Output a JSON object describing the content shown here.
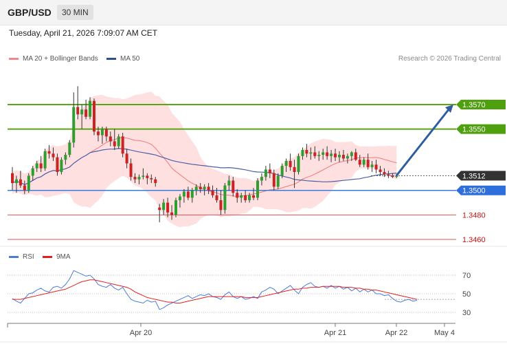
{
  "header": {
    "pair": "GBP/USD",
    "timeframe": "30 MIN",
    "datetime": "Tuesday, April 21, 2026 7:09:07 AM CET"
  },
  "legend": {
    "ma20": "MA 20 + Bollinger Bands",
    "ma50": "MA 50",
    "copyright": "Research © 2026 Trading Central",
    "rsi": "RSI",
    "ma9": "9MA"
  },
  "colors": {
    "bull": "#2e9e2e",
    "bear": "#cc2222",
    "band": "#ffd6d6",
    "ma20": "#f07878",
    "ma50": "#4a5fa8",
    "resistance": "#5aa514",
    "support": "#3a7ae0",
    "target": "#e05050",
    "arrow": "#2e5e9e",
    "rsi": "#4a7bd8",
    "rsi_ma": "#e02020"
  },
  "chart_data": [
    {
      "type": "candlestick",
      "symbol": "GBP/USD",
      "timeframe": "30 MIN",
      "x_labels": [
        "Apr 20",
        "Apr 21",
        "Apr 22",
        "May 4"
      ],
      "price_range": [
        1.345,
        1.3585
      ],
      "levels": [
        {
          "value": 1.357,
          "label": "1.3570",
          "kind": "resistance"
        },
        {
          "value": 1.355,
          "label": "1.3550",
          "kind": "resistance"
        },
        {
          "value": 1.3512,
          "label": "1.3512",
          "kind": "current"
        },
        {
          "value": 1.35,
          "label": "1.3500",
          "kind": "support"
        },
        {
          "value": 1.348,
          "label": "1.3480",
          "kind": "target"
        },
        {
          "value": 1.346,
          "label": "1.3460",
          "kind": "target"
        }
      ],
      "forecast_arrow": {
        "from": 1.3512,
        "to": 1.357
      },
      "candles": [
        [
          1.3514,
          1.3519,
          1.35,
          1.3506
        ],
        [
          1.3506,
          1.3512,
          1.3498,
          1.3509
        ],
        [
          1.3509,
          1.3516,
          1.3502,
          1.3504
        ],
        [
          1.3504,
          1.3508,
          1.3497,
          1.35
        ],
        [
          1.35,
          1.3514,
          1.3498,
          1.3512
        ],
        [
          1.3512,
          1.352,
          1.3508,
          1.3518
        ],
        [
          1.3518,
          1.3524,
          1.3515,
          1.3522
        ],
        [
          1.3522,
          1.3528,
          1.3515,
          1.3518
        ],
        [
          1.3518,
          1.3534,
          1.3516,
          1.3532
        ],
        [
          1.3532,
          1.3537,
          1.3526,
          1.353
        ],
        [
          1.353,
          1.3535,
          1.3524,
          1.3527
        ],
        [
          1.3527,
          1.353,
          1.3512,
          1.3515
        ],
        [
          1.3515,
          1.3527,
          1.3513,
          1.3525
        ],
        [
          1.3525,
          1.3531,
          1.3521,
          1.3529
        ],
        [
          1.3529,
          1.3541,
          1.3527,
          1.3539
        ],
        [
          1.3539,
          1.358,
          1.3535,
          1.3568
        ],
        [
          1.3568,
          1.3585,
          1.3558,
          1.3562
        ],
        [
          1.3562,
          1.357,
          1.355,
          1.3566
        ],
        [
          1.3566,
          1.3574,
          1.3558,
          1.356
        ],
        [
          1.356,
          1.3576,
          1.3558,
          1.3573
        ],
        [
          1.3573,
          1.3575,
          1.3545,
          1.3548
        ],
        [
          1.3548,
          1.3552,
          1.354,
          1.3545
        ],
        [
          1.3545,
          1.3552,
          1.3538,
          1.355
        ],
        [
          1.355,
          1.3552,
          1.354,
          1.3544
        ],
        [
          1.3544,
          1.3548,
          1.3536,
          1.354
        ],
        [
          1.354,
          1.355,
          1.3533,
          1.3536
        ],
        [
          1.3536,
          1.3546,
          1.3534,
          1.3544
        ],
        [
          1.3544,
          1.3547,
          1.3527,
          1.353
        ],
        [
          1.353,
          1.3534,
          1.3518,
          1.3522
        ],
        [
          1.3522,
          1.3526,
          1.3508,
          1.3511
        ],
        [
          1.3511,
          1.3514,
          1.3506,
          1.3509
        ],
        [
          1.3509,
          1.3513,
          1.3505,
          1.3511
        ],
        [
          1.3511,
          1.3518,
          1.3509,
          1.3512
        ],
        [
          1.3512,
          1.3514,
          1.3505,
          1.351
        ],
        [
          1.351,
          1.3513,
          1.3506,
          1.3509
        ],
        [
          1.3509,
          1.3511,
          1.3503,
          1.3506
        ],
        [
          1.3486,
          1.3489,
          1.3474,
          1.3484
        ],
        [
          1.3484,
          1.3493,
          1.348,
          1.349
        ],
        [
          1.349,
          1.3494,
          1.3478,
          1.3482
        ],
        [
          1.3482,
          1.3488,
          1.3476,
          1.348
        ],
        [
          1.348,
          1.3494,
          1.3478,
          1.3492
        ],
        [
          1.3492,
          1.3497,
          1.3486,
          1.3495
        ],
        [
          1.3495,
          1.3501,
          1.349,
          1.3499
        ],
        [
          1.3499,
          1.3503,
          1.3492,
          1.3494
        ],
        [
          1.3494,
          1.3502,
          1.349,
          1.35
        ],
        [
          1.35,
          1.3505,
          1.3496,
          1.3503
        ],
        [
          1.3503,
          1.3506,
          1.3498,
          1.3501
        ],
        [
          1.3501,
          1.3505,
          1.3496,
          1.3503
        ],
        [
          1.3503,
          1.3506,
          1.3497,
          1.35
        ],
        [
          1.35,
          1.3504,
          1.3494,
          1.3496
        ],
        [
          1.3496,
          1.3502,
          1.349,
          1.3492
        ],
        [
          1.3492,
          1.35,
          1.348,
          1.3484
        ],
        [
          1.3484,
          1.3506,
          1.3481,
          1.3504
        ],
        [
          1.3504,
          1.3512,
          1.35,
          1.3508
        ],
        [
          1.3508,
          1.3511,
          1.3495,
          1.3498
        ],
        [
          1.3498,
          1.3501,
          1.349,
          1.3494
        ],
        [
          1.3494,
          1.3498,
          1.349,
          1.3496
        ],
        [
          1.3496,
          1.35,
          1.349,
          1.3492
        ],
        [
          1.3492,
          1.3498,
          1.349,
          1.3496
        ],
        [
          1.3496,
          1.3502,
          1.3492,
          1.3494
        ],
        [
          1.3494,
          1.351,
          1.3492,
          1.3508
        ],
        [
          1.3508,
          1.3514,
          1.3504,
          1.3511
        ],
        [
          1.3511,
          1.352,
          1.3508,
          1.3517
        ],
        [
          1.3517,
          1.3522,
          1.351,
          1.3514
        ],
        [
          1.3514,
          1.3517,
          1.35,
          1.3503
        ],
        [
          1.3503,
          1.3514,
          1.3501,
          1.3512
        ],
        [
          1.3512,
          1.3522,
          1.351,
          1.352
        ],
        [
          1.352,
          1.3526,
          1.3515,
          1.3524
        ],
        [
          1.3524,
          1.353,
          1.3516,
          1.3519
        ],
        [
          1.3519,
          1.3525,
          1.3502,
          1.3515
        ],
        [
          1.3515,
          1.353,
          1.3513,
          1.3528
        ],
        [
          1.3528,
          1.3535,
          1.3525,
          1.3533
        ],
        [
          1.3533,
          1.3538,
          1.3527,
          1.353
        ],
        [
          1.353,
          1.3535,
          1.3525,
          1.3531
        ],
        [
          1.3531,
          1.3536,
          1.3526,
          1.3528
        ],
        [
          1.3528,
          1.3532,
          1.3524,
          1.3529
        ],
        [
          1.3529,
          1.3534,
          1.3525,
          1.3531
        ],
        [
          1.3531,
          1.3536,
          1.3525,
          1.3528
        ],
        [
          1.3528,
          1.3533,
          1.3523,
          1.353
        ],
        [
          1.353,
          1.3534,
          1.3524,
          1.3527
        ],
        [
          1.3527,
          1.3532,
          1.3523,
          1.3529
        ],
        [
          1.3529,
          1.3533,
          1.3524,
          1.3526
        ],
        [
          1.3526,
          1.353,
          1.3522,
          1.3528
        ],
        [
          1.3528,
          1.3532,
          1.3524,
          1.3531
        ],
        [
          1.3531,
          1.3534,
          1.3524,
          1.3525
        ],
        [
          1.3525,
          1.3529,
          1.3519,
          1.3521
        ],
        [
          1.3521,
          1.3527,
          1.3519,
          1.3525
        ],
        [
          1.3525,
          1.353,
          1.3517,
          1.3519
        ],
        [
          1.3519,
          1.3524,
          1.3515,
          1.3521
        ],
        [
          1.3521,
          1.3525,
          1.3514,
          1.3517
        ],
        [
          1.3517,
          1.352,
          1.3512,
          1.3515
        ],
        [
          1.3515,
          1.3518,
          1.3511,
          1.3513
        ],
        [
          1.3513,
          1.3516,
          1.351,
          1.3512
        ],
        [
          1.3512,
          1.3514,
          1.351,
          1.3511
        ],
        [
          1.3511,
          1.3513,
          1.351,
          1.3512
        ]
      ]
    },
    {
      "type": "line",
      "name": "RSI",
      "yticks": [
        70,
        50,
        30
      ],
      "ylim": [
        25,
        78
      ],
      "series": [
        {
          "name": "RSI",
          "values": [
            45,
            42,
            40,
            45,
            50,
            51,
            54,
            56,
            53,
            52,
            57,
            58,
            56,
            60,
            66,
            75,
            73,
            71,
            69,
            70,
            66,
            60,
            58,
            57,
            60,
            56,
            54,
            57,
            50,
            44,
            42,
            41,
            40,
            43,
            41,
            42,
            33,
            35,
            38,
            40,
            42,
            44,
            46,
            48,
            45,
            47,
            49,
            48,
            50,
            47,
            46,
            44,
            49,
            52,
            47,
            45,
            47,
            44,
            45,
            47,
            45,
            52,
            54,
            57,
            55,
            50,
            53,
            56,
            59,
            54,
            50,
            57,
            60,
            62,
            58,
            57,
            58,
            56,
            59,
            56,
            58,
            55,
            57,
            53,
            56,
            52,
            55,
            52,
            54,
            50,
            50,
            48,
            49,
            45,
            42,
            41,
            43,
            44,
            42,
            43
          ]
        },
        {
          "name": "9MA",
          "values": [
            44,
            44,
            44,
            45,
            46,
            47,
            48,
            49,
            50,
            51,
            52,
            53,
            54,
            55,
            57,
            59,
            61,
            63,
            64,
            65,
            65,
            64,
            63,
            62,
            61,
            60,
            59,
            58,
            57,
            55,
            52,
            50,
            48,
            46,
            45,
            44,
            43,
            42,
            41,
            41,
            40,
            40,
            41,
            42,
            43,
            44,
            45,
            46,
            47,
            47,
            47,
            47,
            47,
            47,
            47,
            47,
            47,
            46,
            46,
            46,
            46,
            47,
            48,
            49,
            50,
            51,
            52,
            53,
            54,
            55,
            55,
            56,
            56,
            57,
            57,
            57,
            58,
            58,
            58,
            58,
            58,
            57,
            57,
            57,
            56,
            56,
            55,
            55,
            54,
            54,
            53,
            52,
            51,
            50,
            49,
            48,
            47,
            46,
            45,
            44
          ]
        }
      ]
    }
  ]
}
